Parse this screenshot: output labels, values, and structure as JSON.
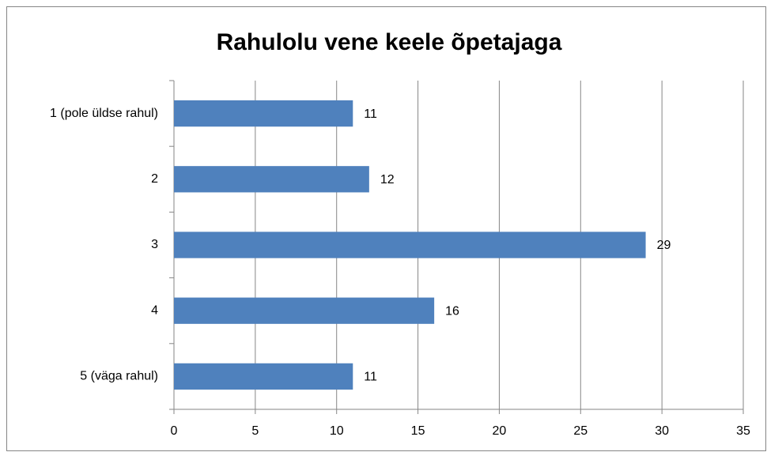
{
  "chart_data": {
    "type": "bar",
    "orientation": "horizontal",
    "title": "Rahulolu vene keele õpetajaga",
    "categories": [
      "1 (pole üldse rahul)",
      "2",
      "3",
      "4",
      "5 (väga rahul)"
    ],
    "values": [
      11,
      12,
      29,
      16,
      11
    ],
    "color": "#4f81bd",
    "xlim": [
      0,
      35
    ],
    "xticks": [
      0,
      5,
      10,
      15,
      20,
      25,
      30,
      35
    ],
    "grid": true
  }
}
